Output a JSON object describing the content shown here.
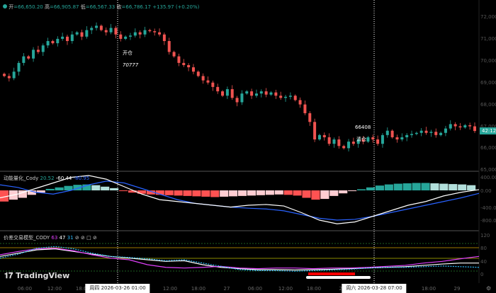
{
  "legend": {
    "open_label": "开",
    "open": "66,650.20",
    "high_label": "高",
    "high": "66,905.87",
    "low_label": "低",
    "low": "66,567.33",
    "close_label": "收",
    "close": "66,786.17",
    "change": "+135.97 (+0.20%)"
  },
  "annotations": {
    "open_text": "开仓",
    "open_price": "70777",
    "close_price": "66408",
    "close_text": "清仓"
  },
  "price_axis": [
    "72,000",
    "71,000",
    "70,000",
    "69,000",
    "68,000",
    "67,000",
    "66,000",
    "65,000"
  ],
  "countdown": "42:12",
  "macd": {
    "title": "动能量化_Cody",
    "v1": "20.52",
    "v2": "-60.44",
    "v3": "-80.95",
    "axis": [
      "400.00",
      "0.00",
      "-400.00",
      "-800.00"
    ]
  },
  "rsi": {
    "title": "价差交易模型_CODY",
    "v1": "63",
    "v2": "47",
    "v3": "31",
    "icons": [
      "⊘",
      "⊘",
      "⊘"
    ],
    "axis": [
      "120",
      "80",
      "40",
      "0"
    ]
  },
  "time_axis": [
    "06:00",
    "12:00",
    "18:00",
    "12:00",
    "18:00",
    "27",
    "06:00",
    "12:00",
    "18:00",
    "28",
    "18:00",
    "29"
  ],
  "crosshair_labels": [
    "周四 2026-03-26   01:00",
    "周六 2026-03-28   07:00"
  ],
  "logo": "TradingView",
  "colors": {
    "up": "#26a69a",
    "down": "#ef5350",
    "macd_fast": "#ffffff",
    "macd_slow": "#2962ff",
    "rsi_a": "#e040fb",
    "rsi_b": "#ffffff",
    "rsi_c": "#29b6f6"
  },
  "chart_data": {
    "type": "candlestick",
    "closes": [
      69300,
      69200,
      69500,
      69900,
      70200,
      70100,
      70500,
      70400,
      70700,
      70900,
      70800,
      71000,
      71100,
      70900,
      71200,
      71300,
      71100,
      71400,
      71500,
      71600,
      71400,
      71300,
      71500,
      71200,
      71000,
      71100,
      71150,
      71300,
      71200,
      71400,
      71350,
      71300,
      71200,
      70900,
      70400,
      70200,
      69900,
      69800,
      69700,
      69500,
      69300,
      69100,
      69000,
      68800,
      68600,
      68400,
      68700,
      68300,
      68100,
      68500,
      68600,
      68400,
      68500,
      68600,
      68450,
      68550,
      68400,
      68300,
      68350,
      68400,
      68200,
      68000,
      67600,
      67200,
      66400,
      66600,
      66500,
      66200,
      66400,
      66100,
      66000,
      66300,
      66200,
      66400,
      66300,
      66500,
      66400,
      66200,
      66600,
      66800,
      66500,
      66400,
      66500,
      66600,
      66650,
      66700,
      66800,
      66700,
      66750,
      66600,
      66700,
      66900,
      67100,
      67000,
      66950,
      67050,
      67000,
      66786
    ],
    "macd_hist": [
      -300,
      -250,
      -200,
      -120,
      -60,
      40,
      80,
      120,
      150,
      160,
      140,
      100,
      60,
      -20,
      -60,
      -90,
      -110,
      -120,
      -130,
      -140,
      -150,
      -160,
      -170,
      -180,
      -170,
      -160,
      -150,
      -140,
      -130,
      -120,
      -110,
      -120,
      -140,
      -200,
      -250,
      -230,
      -150,
      -80,
      -20,
      30,
      80,
      130,
      160,
      180,
      190,
      200,
      200,
      190,
      180,
      170,
      160,
      140
    ],
    "macd_fast": [
      -200,
      -100,
      50,
      200,
      350,
      400,
      300,
      100,
      -100,
      -250,
      -300,
      -350,
      -400,
      -450,
      -400,
      -380,
      -420,
      -600,
      -800,
      -900,
      -850,
      -700,
      -550,
      -400,
      -300,
      -150,
      -50,
      20
    ],
    "macd_slow": [
      150,
      80,
      -50,
      -100,
      0,
      150,
      250,
      200,
      50,
      -100,
      -250,
      -350,
      -400,
      -450,
      -480,
      -500,
      -550,
      -650,
      -750,
      -800,
      -780,
      -700,
      -600,
      -500,
      -400,
      -300,
      -200,
      -80
    ],
    "rsi_a": [
      60,
      70,
      78,
      80,
      72,
      60,
      50,
      45,
      30,
      22,
      20,
      22,
      25,
      20,
      18,
      20,
      20,
      18,
      20,
      20,
      22,
      25,
      28,
      35,
      40,
      48,
      55
    ],
    "rsi_b": [
      55,
      65,
      75,
      78,
      70,
      62,
      55,
      50,
      45,
      40,
      42,
      30,
      22,
      18,
      15,
      15,
      14,
      15,
      16,
      18,
      20,
      22,
      24,
      28,
      32,
      35,
      35
    ],
    "rsi_c": [
      50,
      62,
      80,
      85,
      78,
      65,
      55,
      52,
      48,
      42,
      45,
      35,
      25,
      15,
      12,
      12,
      10,
      12,
      14,
      16,
      20,
      22,
      22,
      24,
      26,
      24,
      22
    ]
  }
}
